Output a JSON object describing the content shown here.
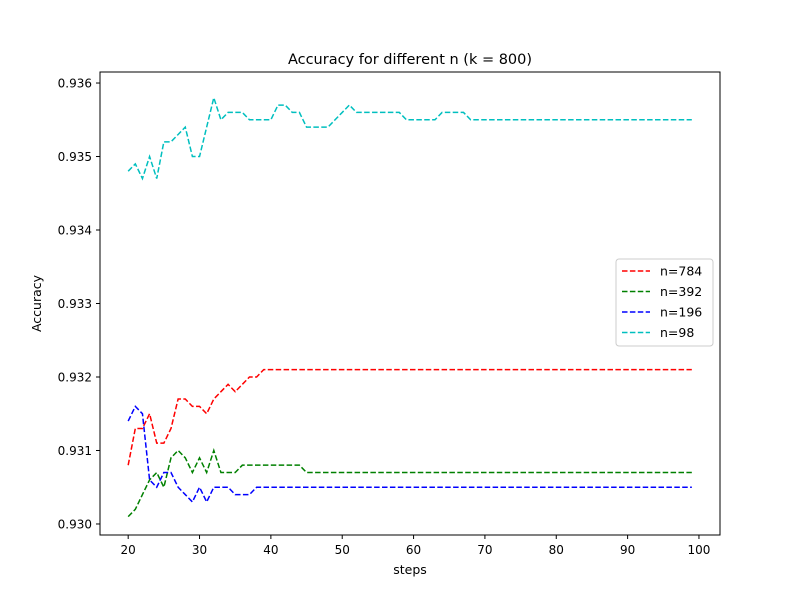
{
  "chart_data": {
    "type": "line",
    "title": "Accuracy for different n (k = 800)",
    "xlabel": "steps",
    "ylabel": "Accuracy",
    "xlim": [
      16.05,
      102.95
    ],
    "ylim": [
      0.92985,
      0.93615
    ],
    "xticks": [
      20,
      30,
      40,
      50,
      60,
      70,
      80,
      90,
      100
    ],
    "xtick_labels": [
      "20",
      "30",
      "40",
      "50",
      "60",
      "70",
      "80",
      "90",
      "100"
    ],
    "yticks": [
      0.93,
      0.931,
      0.932,
      0.933,
      0.934,
      0.935,
      0.936
    ],
    "ytick_labels": [
      "0.930",
      "0.931",
      "0.932",
      "0.933",
      "0.934",
      "0.935",
      "0.936"
    ],
    "grid": false,
    "legend_position": "center-right",
    "x": [
      20,
      21,
      22,
      23,
      24,
      25,
      26,
      27,
      28,
      29,
      30,
      31,
      32,
      33,
      34,
      35,
      36,
      37,
      38,
      39,
      40,
      41,
      42,
      43,
      44,
      45,
      46,
      47,
      48,
      49,
      50,
      51,
      52,
      53,
      54,
      55,
      56,
      57,
      58,
      59,
      60,
      61,
      62,
      63,
      64,
      65,
      66,
      67,
      68,
      69,
      70,
      71,
      72,
      73,
      74,
      75,
      76,
      77,
      78,
      79,
      80,
      81,
      82,
      83,
      84,
      85,
      86,
      87,
      88,
      89,
      90,
      91,
      92,
      93,
      94,
      95,
      96,
      97,
      98,
      99
    ],
    "series": [
      {
        "name": "n=784",
        "color": "#ff0000",
        "values": [
          0.9308,
          0.9313,
          0.9313,
          0.9315,
          0.9311,
          0.9311,
          0.9313,
          0.9317,
          0.9317,
          0.9316,
          0.9316,
          0.9315,
          0.9317,
          0.9318,
          0.9319,
          0.9318,
          0.9319,
          0.932,
          0.932,
          0.9321,
          0.9321,
          0.9321,
          0.9321,
          0.9321,
          0.9321,
          0.9321,
          0.9321,
          0.9321,
          0.9321,
          0.9321,
          0.9321,
          0.9321,
          0.9321,
          0.9321,
          0.9321,
          0.9321,
          0.9321,
          0.9321,
          0.9321,
          0.9321,
          0.9321,
          0.9321,
          0.9321,
          0.9321,
          0.9321,
          0.9321,
          0.9321,
          0.9321,
          0.9321,
          0.9321,
          0.9321,
          0.9321,
          0.9321,
          0.9321,
          0.9321,
          0.9321,
          0.9321,
          0.9321,
          0.9321,
          0.9321,
          0.9321,
          0.9321,
          0.9321,
          0.9321,
          0.9321,
          0.9321,
          0.9321,
          0.9321,
          0.9321,
          0.9321,
          0.9321,
          0.9321,
          0.9321,
          0.9321,
          0.9321,
          0.9321,
          0.9321,
          0.9321,
          0.9321,
          0.9321
        ]
      },
      {
        "name": "n=392",
        "color": "#008000",
        "values": [
          0.9301,
          0.9302,
          0.9304,
          0.9306,
          0.9307,
          0.9305,
          0.9309,
          0.931,
          0.9309,
          0.9307,
          0.9309,
          0.9307,
          0.931,
          0.9307,
          0.9307,
          0.9307,
          0.9308,
          0.9308,
          0.9308,
          0.9308,
          0.9308,
          0.9308,
          0.9308,
          0.9308,
          0.9308,
          0.9307,
          0.9307,
          0.9307,
          0.9307,
          0.9307,
          0.9307,
          0.9307,
          0.9307,
          0.9307,
          0.9307,
          0.9307,
          0.9307,
          0.9307,
          0.9307,
          0.9307,
          0.9307,
          0.9307,
          0.9307,
          0.9307,
          0.9307,
          0.9307,
          0.9307,
          0.9307,
          0.9307,
          0.9307,
          0.9307,
          0.9307,
          0.9307,
          0.9307,
          0.9307,
          0.9307,
          0.9307,
          0.9307,
          0.9307,
          0.9307,
          0.9307,
          0.9307,
          0.9307,
          0.9307,
          0.9307,
          0.9307,
          0.9307,
          0.9307,
          0.9307,
          0.9307,
          0.9307,
          0.9307,
          0.9307,
          0.9307,
          0.9307,
          0.9307,
          0.9307,
          0.9307,
          0.9307,
          0.9307
        ]
      },
      {
        "name": "n=196",
        "color": "#0000ff",
        "values": [
          0.9314,
          0.9316,
          0.9315,
          0.9306,
          0.9305,
          0.9307,
          0.9307,
          0.9305,
          0.9304,
          0.9303,
          0.9305,
          0.9303,
          0.9305,
          0.9305,
          0.9305,
          0.9304,
          0.9304,
          0.9304,
          0.9305,
          0.9305,
          0.9305,
          0.9305,
          0.9305,
          0.9305,
          0.9305,
          0.9305,
          0.9305,
          0.9305,
          0.9305,
          0.9305,
          0.9305,
          0.9305,
          0.9305,
          0.9305,
          0.9305,
          0.9305,
          0.9305,
          0.9305,
          0.9305,
          0.9305,
          0.9305,
          0.9305,
          0.9305,
          0.9305,
          0.9305,
          0.9305,
          0.9305,
          0.9305,
          0.9305,
          0.9305,
          0.9305,
          0.9305,
          0.9305,
          0.9305,
          0.9305,
          0.9305,
          0.9305,
          0.9305,
          0.9305,
          0.9305,
          0.9305,
          0.9305,
          0.9305,
          0.9305,
          0.9305,
          0.9305,
          0.9305,
          0.9305,
          0.9305,
          0.9305,
          0.9305,
          0.9305,
          0.9305,
          0.9305,
          0.9305,
          0.9305,
          0.9305,
          0.9305,
          0.9305,
          0.9305
        ]
      },
      {
        "name": "n=98",
        "color": "#00bfbf",
        "values": [
          0.9348,
          0.9349,
          0.9347,
          0.935,
          0.9347,
          0.9352,
          0.9352,
          0.9353,
          0.9354,
          0.935,
          0.935,
          0.9354,
          0.9358,
          0.9355,
          0.9356,
          0.9356,
          0.9356,
          0.9355,
          0.9355,
          0.9355,
          0.9355,
          0.9357,
          0.9357,
          0.9356,
          0.9356,
          0.9354,
          0.9354,
          0.9354,
          0.9354,
          0.9355,
          0.9356,
          0.9357,
          0.9356,
          0.9356,
          0.9356,
          0.9356,
          0.9356,
          0.9356,
          0.9356,
          0.9355,
          0.9355,
          0.9355,
          0.9355,
          0.9355,
          0.9356,
          0.9356,
          0.9356,
          0.9356,
          0.9355,
          0.9355,
          0.9355,
          0.9355,
          0.9355,
          0.9355,
          0.9355,
          0.9355,
          0.9355,
          0.9355,
          0.9355,
          0.9355,
          0.9355,
          0.9355,
          0.9355,
          0.9355,
          0.9355,
          0.9355,
          0.9355,
          0.9355,
          0.9355,
          0.9355,
          0.9355,
          0.9355,
          0.9355,
          0.9355,
          0.9355,
          0.9355,
          0.9355,
          0.9355,
          0.9355,
          0.9355
        ]
      }
    ]
  }
}
